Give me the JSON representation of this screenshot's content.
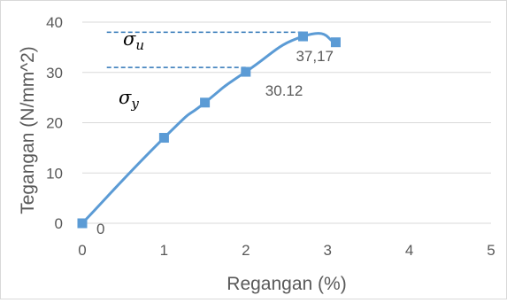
{
  "chart_data": {
    "type": "line",
    "title": "",
    "xlabel": "Regangan (%)",
    "ylabel": "Tegangan (N/mm^2)",
    "xlim": [
      0,
      5
    ],
    "ylim": [
      0,
      40
    ],
    "x_ticks": [
      "0",
      "1",
      "2",
      "3",
      "4",
      "5"
    ],
    "y_ticks": [
      "0",
      "10",
      "20",
      "30",
      "40"
    ],
    "grid": "horizontal",
    "legend": "none",
    "series": [
      {
        "color": "#5b9bd5",
        "marker": "square",
        "smooth": true,
        "x": [
          0,
          1,
          1.5,
          2,
          2.7,
          3.1
        ],
        "y": [
          0,
          17,
          24,
          30.12,
          37.17,
          36
        ]
      }
    ],
    "data_labels": [
      {
        "text": "0",
        "x": 0,
        "y": 0
      },
      {
        "text": "30.12",
        "x": 2,
        "y": 30.12
      },
      {
        "text": "37,17",
        "x": 2.7,
        "y": 37.17
      }
    ],
    "reference_lines": [
      {
        "name": "σu",
        "y": 38,
        "x_from": 0.3,
        "x_to": 2.7,
        "style": "dashed"
      },
      {
        "name": "σy",
        "y": 31,
        "x_from": 0.3,
        "x_to": 2.0,
        "style": "dashed"
      }
    ],
    "annotations": [
      {
        "symbol": "σ",
        "subscript": "u"
      },
      {
        "symbol": "σ",
        "subscript": "y"
      }
    ]
  }
}
